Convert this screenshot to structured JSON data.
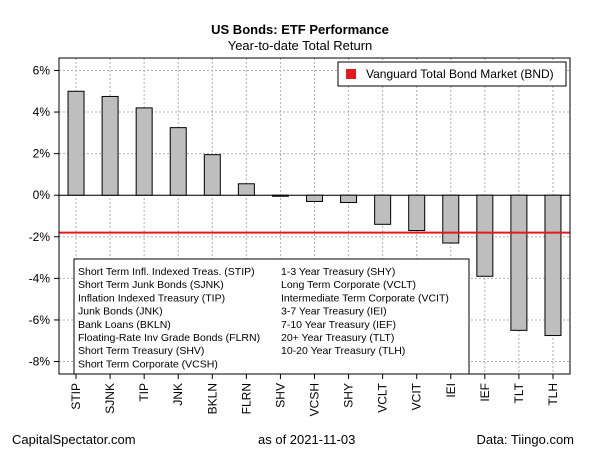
{
  "chart_data": {
    "type": "bar",
    "title": "US Bonds: ETF Performance",
    "subtitle": "Year-to-date Total Return",
    "categories": [
      "STIP",
      "SJNK",
      "TIP",
      "JNK",
      "BKLN",
      "FLRN",
      "SHV",
      "VCSH",
      "SHY",
      "VCLT",
      "VCIT",
      "IEI",
      "IEF",
      "TLT",
      "TLH"
    ],
    "values": [
      5.0,
      4.75,
      4.2,
      3.25,
      1.95,
      0.55,
      -0.05,
      -0.3,
      -0.35,
      -1.4,
      -1.7,
      -2.3,
      -3.9,
      -6.5,
      -6.75
    ],
    "ylim": [
      -8.6,
      6.6
    ],
    "yticks": [
      6,
      4,
      2,
      0,
      -2,
      -4,
      -6,
      -8
    ],
    "ytick_labels": [
      "6%",
      "4%",
      "2%",
      "0%",
      "-2%",
      "-4%",
      "-6%",
      "-8%"
    ],
    "reference_line": {
      "label": "Vanguard Total Bond Market (BND)",
      "value": -1.8,
      "color": "#e31a1c"
    },
    "bar_color": "#bebebe",
    "grid": true,
    "legend_position": "top-right",
    "ticker_key": {
      "left": [
        "Short Term Infl. Indexed Treas. (STIP)",
        "Short Term Junk Bonds (SJNK)",
        "Inflation Indexed Treasury (TIP)",
        "Junk Bonds (JNK)",
        "Bank Loans (BKLN)",
        "Floating-Rate Inv Grade Bonds (FLRN)",
        "Short Term Treasury (SHV)",
        "Short Term Corporate (VCSH)"
      ],
      "right": [
        "1-3 Year Treasury (SHY)",
        "Long Term Corporate (VCLT)",
        "Intermediate Term Corporate (VCIT)",
        "3-7 Year Treasury (IEI)",
        "7-10 Year Treasury (IEF)",
        "20+ Year Treasury (TLT)",
        "10-20 Year Treasury (TLH)"
      ]
    }
  },
  "footer": {
    "left": "CapitalSpectator.com",
    "mid": "as of   2021-11-03",
    "right": "Data: Tiingo.com"
  }
}
